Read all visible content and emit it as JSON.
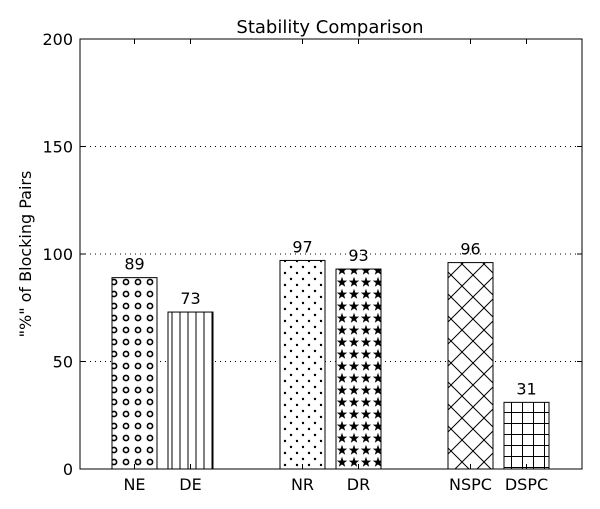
{
  "chart_data": {
    "type": "bar",
    "title": "Stability Comparison",
    "xlabel": "",
    "ylabel": "\"%\" of Blocking Pairs",
    "ylim": [
      0,
      200
    ],
    "yticks": [
      0,
      50,
      100,
      150,
      200
    ],
    "grid": "horizontal dotted",
    "categories": [
      "NE",
      "DE",
      "NR",
      "DR",
      "NSPC",
      "DSPC"
    ],
    "values": [
      89,
      73,
      97,
      93,
      96,
      31
    ],
    "data_labels": [
      "89",
      "73",
      "97",
      "93",
      "96",
      "31"
    ],
    "bar_patterns": [
      "circles",
      "vertical-lines",
      "dots",
      "stars",
      "crosshatch-diagonal",
      "grid"
    ],
    "colors": {
      "bar_fill": "#ffffff",
      "bar_edge": "#000000",
      "grid": "#000000"
    }
  }
}
